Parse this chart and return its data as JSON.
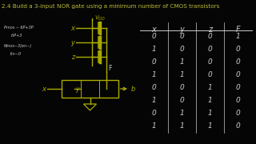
{
  "bg_color": "#050505",
  "title": "2.4 Build a 3-input NOR gate using a minimum number of CMOS transistors",
  "title_fontsize": 5.2,
  "title_color": "#bbbb33",
  "circuit_color": "#aaaa00",
  "white_color": "#cccccc",
  "table_headers": [
    "x",
    "y",
    "z",
    "F"
  ],
  "table_data": [
    [
      0,
      0,
      0,
      1
    ],
    [
      1,
      0,
      0,
      0
    ],
    [
      0,
      1,
      0,
      0
    ],
    [
      1,
      1,
      0,
      0
    ],
    [
      0,
      0,
      1,
      0
    ],
    [
      1,
      0,
      1,
      0
    ],
    [
      0,
      1,
      1,
      0
    ],
    [
      1,
      1,
      1,
      0
    ]
  ],
  "notes": [
    "Pmos ~ 6P+3P",
    "      6P+3",
    "Nmos~3(en~)",
    "     6n~0"
  ]
}
